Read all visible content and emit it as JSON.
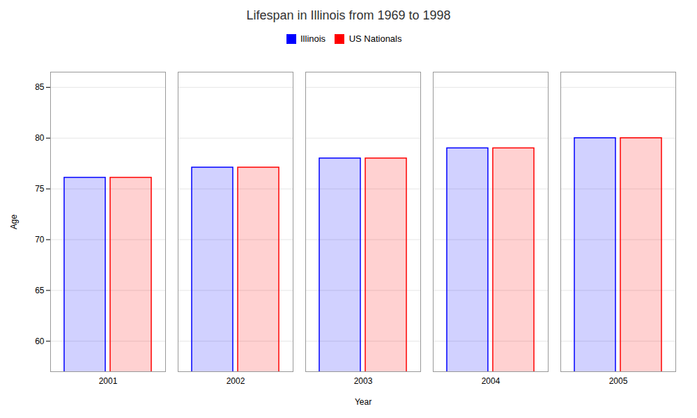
{
  "chart_data": {
    "type": "bar",
    "title": "Lifespan in Illinois from 1969 to 1998",
    "xlabel": "Year",
    "ylabel": "Age",
    "categories": [
      "2001",
      "2002",
      "2003",
      "2004",
      "2005"
    ],
    "series": [
      {
        "name": "Illinois",
        "color": "#0000ff",
        "values": [
          76.1,
          77.1,
          78.0,
          79.0,
          80.0
        ]
      },
      {
        "name": "US Nationals",
        "color": "#ff0000",
        "values": [
          76.1,
          77.1,
          78.0,
          79.0,
          80.0
        ]
      }
    ],
    "ylim": [
      57,
      86.5
    ],
    "yticks": [
      60,
      65,
      70,
      75,
      80,
      85
    ],
    "grid": true,
    "legend": "top"
  }
}
